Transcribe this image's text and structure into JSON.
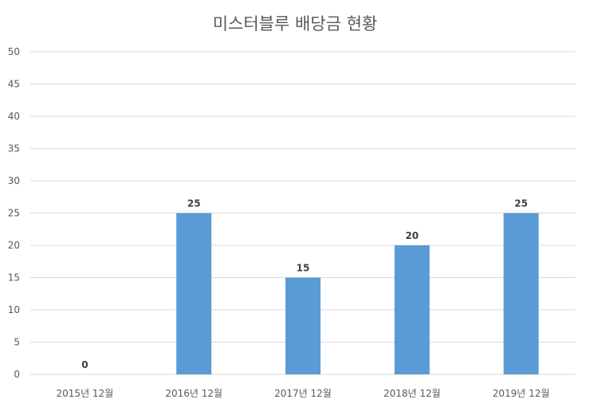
{
  "chart_data": {
    "type": "bar",
    "title": "미스터블루 배당금 현황",
    "categories": [
      "2015년 12월",
      "2016년 12월",
      "2017년 12월",
      "2018년 12월",
      "2019년 12월"
    ],
    "values": [
      0,
      25,
      15,
      20,
      25
    ],
    "ylim": [
      0,
      50
    ],
    "yticks": [
      0,
      5,
      10,
      15,
      20,
      25,
      30,
      35,
      40,
      45,
      50
    ],
    "xlabel": "",
    "ylabel": "",
    "grid": true,
    "data_labels": true,
    "colors": {
      "bar": "#5B9BD5",
      "grid": "#D9D9D9",
      "text": "#595959",
      "label": "#404040"
    }
  }
}
